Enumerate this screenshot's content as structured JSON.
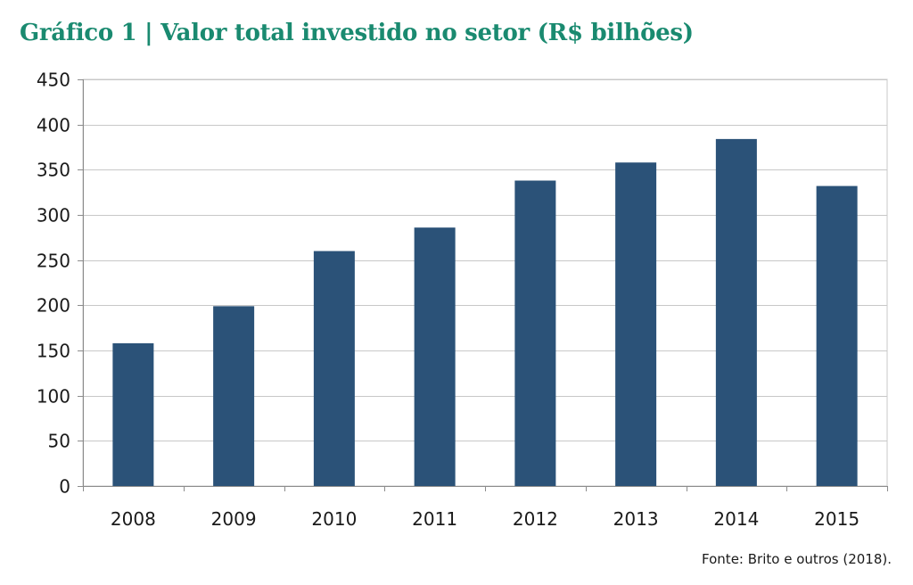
{
  "chart_data": {
    "type": "bar",
    "title": "Gráfico 1 | Valor total investido no setor (R$ bilhões)",
    "categories": [
      "2008",
      "2009",
      "2010",
      "2011",
      "2012",
      "2013",
      "2014",
      "2015"
    ],
    "values": [
      158,
      199,
      260,
      286,
      338,
      358,
      384,
      332
    ],
    "xlabel": "",
    "ylabel": "",
    "ylim": [
      0,
      450
    ],
    "yticks": [
      "0",
      "50",
      "100",
      "150",
      "200",
      "250",
      "300",
      "350",
      "400",
      "450"
    ],
    "grid": true,
    "legend": "none",
    "bar_color": "#2b5278",
    "grid_color": "#c8c8c8",
    "title_color": "#1a8a70"
  },
  "source": "Fonte: Brito e outros (2018)."
}
